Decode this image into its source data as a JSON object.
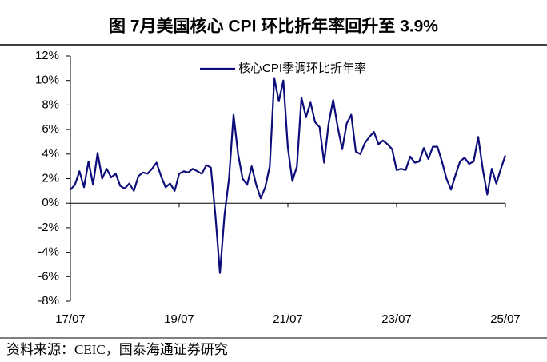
{
  "chart_data": {
    "type": "line",
    "title": "图   7月美国核心 CPI 环比折年率回升至 3.9%",
    "source": "资料来源：CEIC，国泰海通证券研究",
    "categories": [
      "17/07",
      null,
      null,
      null,
      null,
      null,
      null,
      null,
      null,
      null,
      null,
      null,
      null,
      null,
      null,
      null,
      null,
      null,
      null,
      null,
      null,
      null,
      null,
      null,
      "19/07",
      null,
      null,
      null,
      null,
      null,
      null,
      null,
      null,
      null,
      null,
      null,
      null,
      null,
      null,
      null,
      null,
      null,
      null,
      null,
      null,
      null,
      null,
      null,
      "21/07",
      null,
      null,
      null,
      null,
      null,
      null,
      null,
      null,
      null,
      null,
      null,
      null,
      null,
      null,
      null,
      null,
      null,
      null,
      null,
      null,
      null,
      null,
      null,
      "23/07",
      null,
      null,
      null,
      null,
      null,
      null,
      null,
      null,
      null,
      null,
      null,
      null,
      null,
      null,
      null,
      null,
      null,
      null,
      null,
      null,
      null,
      null,
      null,
      "25/07"
    ],
    "series": [
      {
        "name": "核心CPI季调环比折年率",
        "color": "#0c0c7a",
        "values": [
          1.1,
          1.5,
          2.6,
          1.3,
          3.4,
          1.5,
          4.1,
          2.0,
          2.8,
          2.1,
          2.4,
          1.4,
          1.2,
          1.6,
          1.0,
          2.2,
          2.5,
          2.4,
          2.8,
          3.3,
          2.2,
          1.3,
          1.6,
          1.0,
          2.4,
          2.6,
          2.5,
          2.8,
          2.6,
          2.4,
          3.1,
          2.9,
          -1.0,
          -5.7,
          -1.0,
          2.0,
          7.2,
          4.0,
          2.0,
          1.5,
          3.0,
          1.5,
          0.4,
          1.3,
          3.0,
          10.2,
          8.3,
          10.0,
          4.5,
          1.8,
          3.0,
          8.6,
          7.0,
          8.2,
          6.6,
          6.2,
          3.3,
          6.5,
          8.4,
          6.2,
          4.4,
          6.5,
          7.2,
          4.2,
          4.0,
          4.9,
          5.4,
          5.8,
          4.8,
          5.1,
          4.8,
          4.4,
          2.7,
          2.8,
          2.7,
          3.8,
          3.3,
          3.4,
          4.5,
          3.6,
          4.6,
          4.6,
          3.4,
          2.0,
          1.1,
          2.3,
          3.4,
          3.7,
          3.2,
          3.4,
          5.4,
          2.8,
          0.7,
          2.8,
          1.6,
          2.8,
          3.9
        ]
      }
    ],
    "ylim": [
      -8,
      12
    ],
    "yticks": [
      {
        "value": -8,
        "label": "-8%"
      },
      {
        "value": -6,
        "label": "-6%"
      },
      {
        "value": -4,
        "label": "-4%"
      },
      {
        "value": -2,
        "label": "-2%"
      },
      {
        "value": 0,
        "label": "0%"
      },
      {
        "value": 2,
        "label": "2%"
      },
      {
        "value": 4,
        "label": "4%"
      },
      {
        "value": 6,
        "label": "6%"
      },
      {
        "value": 8,
        "label": "8%"
      },
      {
        "value": 10,
        "label": "10%"
      },
      {
        "value": 12,
        "label": "12%"
      }
    ],
    "legend": "top-center"
  }
}
